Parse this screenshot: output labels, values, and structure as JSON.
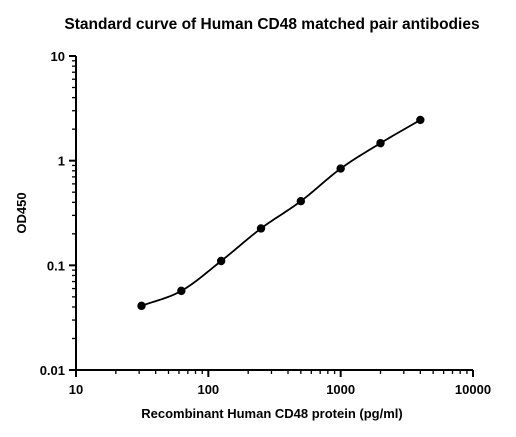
{
  "chart_data": {
    "type": "scatter",
    "title": "Standard curve of Human CD48 matched pair antibodies",
    "xlabel": "Recombinant Human CD48 protein (pg/ml)",
    "ylabel": "OD450",
    "xscale": "log",
    "yscale": "log",
    "xlim": [
      10,
      10000
    ],
    "ylim": [
      0.01,
      10
    ],
    "x_ticks": [
      "10",
      "100",
      "1000",
      "10000"
    ],
    "y_ticks": [
      "0.01",
      "0.1",
      "1",
      "10"
    ],
    "grid": false,
    "legend": "none",
    "series": [
      {
        "x": [
          31.25,
          62.5,
          125,
          250,
          500,
          1000,
          2000,
          4000
        ],
        "y": [
          0.041,
          0.057,
          0.11,
          0.225,
          0.41,
          0.84,
          1.47,
          2.45
        ],
        "fit": "4PL curve"
      }
    ],
    "colors": {
      "points": "#000000",
      "curve": "#000000",
      "axes": "#000000"
    }
  }
}
